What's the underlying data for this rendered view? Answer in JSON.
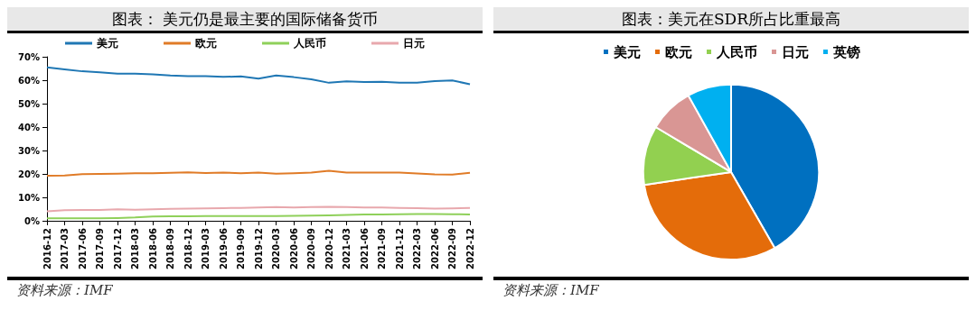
{
  "chart_data": [
    {
      "type": "line",
      "title": "图表： 美元仍是最主要的国际储备货币",
      "annotations": [
        "资料来源：IMF"
      ],
      "categories": [
        "2016-12",
        "2017-03",
        "2017-06",
        "2017-09",
        "2017-12",
        "2018-03",
        "2018-06",
        "2018-09",
        "2018-12",
        "2019-03",
        "2019-06",
        "2019-09",
        "2019-12",
        "2020-03",
        "2020-06",
        "2020-09",
        "2020-12",
        "2021-03",
        "2021-06",
        "2021-09",
        "2021-12",
        "2022-03",
        "2022-06",
        "2022-09",
        "2022-12"
      ],
      "series": [
        {
          "name": "美元",
          "color": "#1f77b4",
          "values": [
            65.5,
            64.6,
            63.8,
            63.4,
            62.8,
            62.8,
            62.5,
            62.0,
            61.7,
            61.7,
            61.4,
            61.6,
            60.7,
            62.0,
            61.3,
            60.4,
            58.9,
            59.5,
            59.2,
            59.3,
            58.9,
            58.9,
            59.6,
            59.9,
            58.3
          ]
        },
        {
          "name": "欧元",
          "color": "#e07b27",
          "values": [
            19.2,
            19.3,
            19.9,
            20.0,
            20.1,
            20.3,
            20.3,
            20.5,
            20.7,
            20.4,
            20.6,
            20.3,
            20.6,
            20.1,
            20.3,
            20.6,
            21.3,
            20.6,
            20.6,
            20.6,
            20.6,
            20.2,
            19.8,
            19.7,
            20.5
          ]
        },
        {
          "name": "人民币",
          "color": "#8fd05a",
          "values": [
            1.1,
            1.1,
            1.1,
            1.1,
            1.2,
            1.4,
            1.8,
            1.9,
            1.9,
            2.0,
            2.0,
            2.0,
            2.0,
            2.0,
            2.1,
            2.2,
            2.3,
            2.5,
            2.7,
            2.7,
            2.8,
            2.9,
            2.9,
            2.8,
            2.7
          ]
        },
        {
          "name": "日元",
          "color": "#e8a8ad",
          "values": [
            4.0,
            4.5,
            4.6,
            4.6,
            4.9,
            4.7,
            4.9,
            5.1,
            5.2,
            5.3,
            5.4,
            5.5,
            5.7,
            5.9,
            5.7,
            5.9,
            6.0,
            5.9,
            5.7,
            5.7,
            5.5,
            5.4,
            5.2,
            5.3,
            5.5
          ]
        }
      ],
      "ylim": [
        0,
        70
      ],
      "yticks": [
        {
          "value": 0,
          "label": "0%"
        },
        {
          "value": 10,
          "label": "10%"
        },
        {
          "value": 20,
          "label": "20%"
        },
        {
          "value": 30,
          "label": "30%"
        },
        {
          "value": 40,
          "label": "40%"
        },
        {
          "value": 50,
          "label": "50%"
        },
        {
          "value": 60,
          "label": "60%"
        },
        {
          "value": 70,
          "label": "70%"
        }
      ],
      "legend": "top",
      "marker": "none",
      "line_style": "solid"
    },
    {
      "type": "pie",
      "title": "图表：美元在SDR所占比重最高",
      "annotations": [
        "资料来源：IMF"
      ],
      "categories": [
        "美元",
        "欧元",
        "人民币",
        "日元",
        "英镑"
      ],
      "values": [
        41.73,
        30.93,
        10.92,
        8.33,
        8.09
      ],
      "colors": [
        "#0070c0",
        "#e46c0a",
        "#92d050",
        "#d99694",
        "#00b0f0"
      ],
      "legend": "top"
    }
  ]
}
